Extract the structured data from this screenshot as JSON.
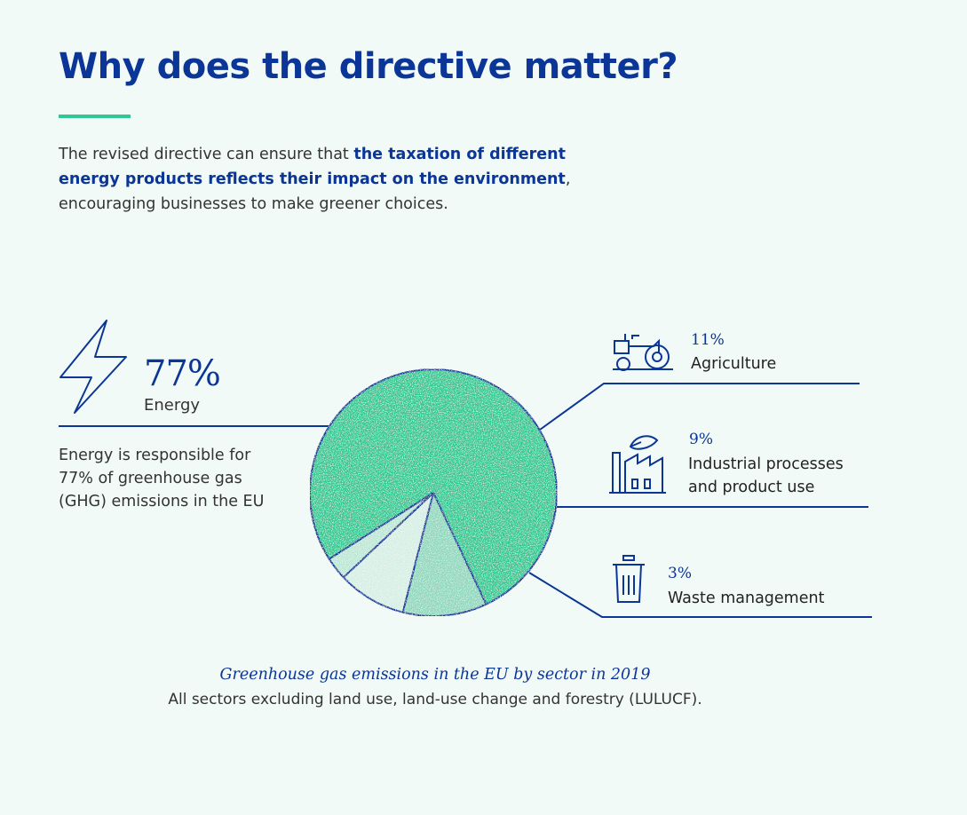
{
  "header": {
    "title": "Why does the directive matter?",
    "intro_prefix": "The revised directive can ensure that ",
    "intro_highlight": "the taxation of different energy products reflects their impact on the environment",
    "intro_suffix": ", encouraging businesses to make greener choices."
  },
  "energy_note": "Energy is responsible for 77% of greenhouse gas (GHG) emissions in the EU",
  "colors": {
    "brand_blue": "#0b3596",
    "accent_green": "#2ec993",
    "energy_slice": "#2ec993",
    "agriculture_slice": "#8fd8bd",
    "industry_slice": "#d6efe4",
    "waste_slice": "#bce7d5"
  },
  "icons": {
    "energy": "lightning-icon",
    "agriculture": "tractor-icon",
    "industry": "factory-icon",
    "waste": "trash-bin-icon"
  },
  "chart_data": {
    "type": "pie",
    "title": "Greenhouse gas emissions in the EU by sector in 2019",
    "subtitle": "All sectors excluding land use, land-use change and forestry (LULUCF).",
    "slices": [
      {
        "label": "Energy",
        "value": 77,
        "display": "77%"
      },
      {
        "label": "Agriculture",
        "value": 11,
        "display": "11%"
      },
      {
        "label": "Industrial processes and product use",
        "value": 9,
        "display": "9%"
      },
      {
        "label": "Waste management",
        "value": 3,
        "display": "3%"
      }
    ]
  }
}
